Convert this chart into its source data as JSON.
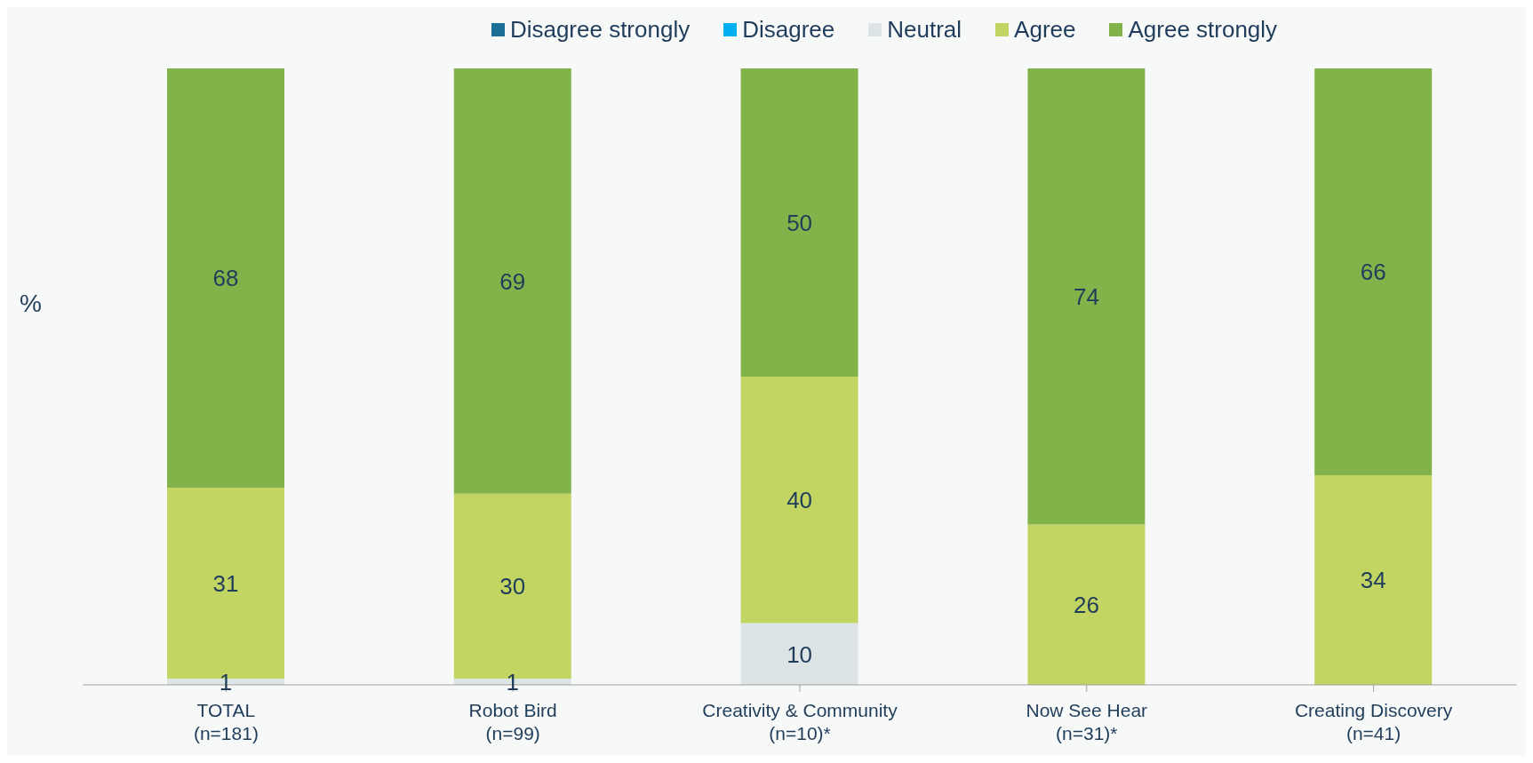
{
  "chart_data": {
    "type": "bar",
    "stacked": true,
    "ylabel": "%",
    "categories": [
      "TOTAL\n(n=181)",
      "Robot Bird\n(n=99)",
      "Creativity & Community\n(n=10)*",
      "Now See Hear\n(n=31)*",
      "Creating Discovery\n(n=41)"
    ],
    "series": [
      {
        "name": "Disagree strongly",
        "color": "#1a6f97",
        "values": [
          null,
          null,
          null,
          null,
          null
        ]
      },
      {
        "name": "Disagree",
        "color": "#00b0f0",
        "values": [
          null,
          null,
          null,
          null,
          null
        ]
      },
      {
        "name": "Neutral",
        "color": "#dde4e6",
        "values": [
          1,
          1,
          10,
          null,
          null
        ]
      },
      {
        "name": "Agree",
        "color": "#c2d563",
        "values": [
          31,
          30,
          40,
          26,
          34
        ]
      },
      {
        "name": "Agree strongly",
        "color": "#82b34a",
        "values": [
          68,
          69,
          50,
          74,
          66
        ]
      }
    ],
    "ylim": [
      0,
      100
    ],
    "tick_labels": "x",
    "data_labels": true,
    "legend": "top",
    "grid": false
  }
}
